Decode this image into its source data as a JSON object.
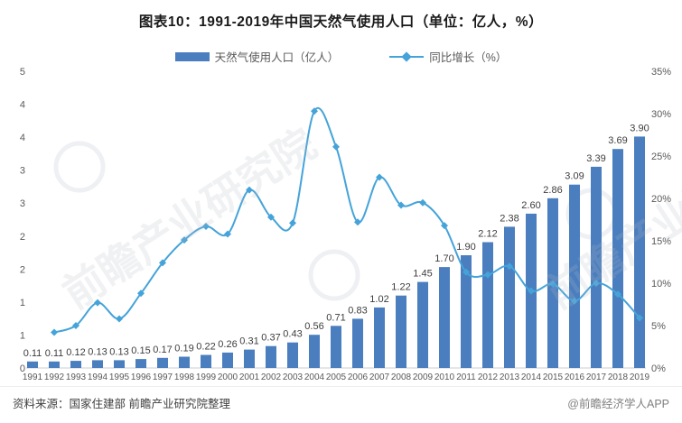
{
  "title": "图表10：1991-2019年中国天然气使用人口（单位：亿人，%）",
  "legend": [
    {
      "label": "天然气使用人口（亿人）",
      "type": "bar"
    },
    {
      "label": "同比增长（%）",
      "type": "line"
    }
  ],
  "footer": {
    "source": "资料来源：国家住建部 前瞻产业研究院整理",
    "credit": "@前瞻经济学人APP"
  },
  "watermark": {
    "text": "前瞻产业研究院"
  },
  "colors": {
    "bar": "#4A7EBE",
    "line": "#45A3D9",
    "axis_text": "#595959",
    "bar_label_text": "#3d3d3d",
    "baseline": "#c9cdd2"
  },
  "chart_data": {
    "type": "bar",
    "combo": "bar+line",
    "title": "图表10：1991-2019年中国天然气使用人口（单位：亿人，%）",
    "categories": [
      "1991",
      "1992",
      "1993",
      "1994",
      "1995",
      "1996",
      "1997",
      "1998",
      "1999",
      "2000",
      "2001",
      "2002",
      "2003",
      "2004",
      "2005",
      "2006",
      "2007",
      "2008",
      "2009",
      "2010",
      "2011",
      "2012",
      "2013",
      "2014",
      "2015",
      "2016",
      "2017",
      "2018",
      "2019"
    ],
    "series": [
      {
        "name": "天然气使用人口（亿人）",
        "type": "bar",
        "axis": "left",
        "values": [
          0.11,
          0.11,
          0.12,
          0.13,
          0.13,
          0.15,
          0.17,
          0.19,
          0.22,
          0.26,
          0.31,
          0.37,
          0.43,
          0.56,
          0.71,
          0.83,
          1.02,
          1.22,
          1.45,
          1.7,
          1.9,
          2.12,
          2.38,
          2.6,
          2.86,
          3.09,
          3.39,
          3.69,
          3.9
        ],
        "labels": [
          "0.11",
          "0.11",
          "0.12",
          "0.13",
          "0.13",
          "0.15",
          "0.17",
          "0.19",
          "0.22",
          "0.26",
          "0.31",
          "0.37",
          "0.43",
          "0.56",
          "0.71",
          "0.83",
          "1.02",
          "1.22",
          "1.45",
          "1.70",
          "1.90",
          "2.12",
          "2.38",
          "2.60",
          "2.86",
          "3.09",
          "3.39",
          "3.69",
          "3.90"
        ]
      },
      {
        "name": "同比增长（%）",
        "type": "line",
        "axis": "right",
        "values": [
          null,
          4.2,
          5.0,
          7.7,
          5.8,
          8.8,
          12.4,
          15.1,
          16.7,
          15.8,
          21.0,
          17.8,
          17.1,
          30.3,
          26.1,
          17.2,
          22.5,
          19.2,
          19.5,
          16.8,
          11.3,
          11.0,
          12.0,
          9.1,
          9.9,
          7.9,
          10.0,
          8.7,
          5.9
        ]
      }
    ],
    "left_axis": {
      "min": 0,
      "max": 5,
      "labels": [
        "5",
        "4",
        "4",
        "3",
        "3",
        "2",
        "2",
        "1",
        "1",
        "0"
      ]
    },
    "right_axis": {
      "min": 0,
      "max": 35,
      "labels": [
        "35%",
        "30%",
        "25%",
        "20%",
        "15%",
        "10%",
        "5%",
        "0%"
      ]
    },
    "grid": false,
    "legend_position": "top",
    "xlabel": "",
    "ylabel_left": "亿人",
    "ylabel_right": "%"
  }
}
